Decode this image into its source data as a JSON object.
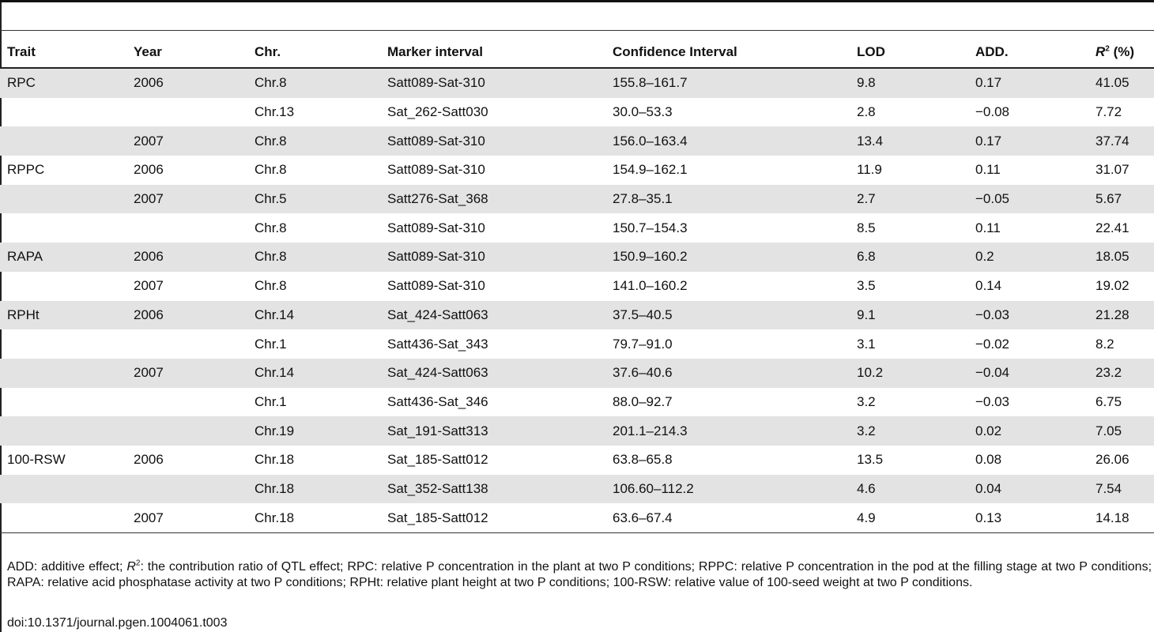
{
  "table": {
    "headers": {
      "trait": "Trait",
      "year": "Year",
      "chr": "Chr.",
      "marker": "Marker interval",
      "ci": "Confidence Interval",
      "lod": "LOD",
      "add": "ADD.",
      "r2_symbol": "R",
      "r2_sup": "2",
      "r2_unit": " (%)"
    },
    "rows": [
      {
        "trait": "RPC",
        "year": "2006",
        "chr": "Chr.8",
        "marker": "Satt089-Sat-310",
        "ci": "155.8–161.7",
        "lod": "9.8",
        "add": "0.17",
        "r2": "41.05",
        "shaded": true
      },
      {
        "trait": "",
        "year": "",
        "chr": "Chr.13",
        "marker": "Sat_262-Satt030",
        "ci": "30.0–53.3",
        "lod": "2.8",
        "add": "−0.08",
        "r2": "7.72",
        "shaded": false
      },
      {
        "trait": "",
        "year": "2007",
        "chr": "Chr.8",
        "marker": "Satt089-Sat-310",
        "ci": "156.0–163.4",
        "lod": "13.4",
        "add": "0.17",
        "r2": "37.74",
        "shaded": true
      },
      {
        "trait": "RPPC",
        "year": "2006",
        "chr": "Chr.8",
        "marker": "Satt089-Sat-310",
        "ci": "154.9–162.1",
        "lod": "11.9",
        "add": "0.11",
        "r2": "31.07",
        "shaded": false
      },
      {
        "trait": "",
        "year": "2007",
        "chr": "Chr.5",
        "marker": "Satt276-Sat_368",
        "ci": "27.8–35.1",
        "lod": "2.7",
        "add": "−0.05",
        "r2": "5.67",
        "shaded": true
      },
      {
        "trait": "",
        "year": "",
        "chr": "Chr.8",
        "marker": "Satt089-Sat-310",
        "ci": "150.7–154.3",
        "lod": "8.5",
        "add": "0.11",
        "r2": "22.41",
        "shaded": false
      },
      {
        "trait": "RAPA",
        "year": "2006",
        "chr": "Chr.8",
        "marker": "Satt089-Sat-310",
        "ci": "150.9–160.2",
        "lod": "6.8",
        "add": "0.2",
        "r2": "18.05",
        "shaded": true
      },
      {
        "trait": "",
        "year": "2007",
        "chr": "Chr.8",
        "marker": "Satt089-Sat-310",
        "ci": "141.0–160.2",
        "lod": "3.5",
        "add": "0.14",
        "r2": "19.02",
        "shaded": false
      },
      {
        "trait": "RPHt",
        "year": "2006",
        "chr": "Chr.14",
        "marker": "Sat_424-Satt063",
        "ci": "37.5–40.5",
        "lod": "9.1",
        "add": "−0.03",
        "r2": "21.28",
        "shaded": true
      },
      {
        "trait": "",
        "year": "",
        "chr": "Chr.1",
        "marker": "Satt436-Sat_343",
        "ci": "79.7–91.0",
        "lod": "3.1",
        "add": "−0.02",
        "r2": "8.2",
        "shaded": false
      },
      {
        "trait": "",
        "year": "2007",
        "chr": "Chr.14",
        "marker": "Sat_424-Satt063",
        "ci": "37.6–40.6",
        "lod": "10.2",
        "add": "−0.04",
        "r2": "23.2",
        "shaded": true
      },
      {
        "trait": "",
        "year": "",
        "chr": "Chr.1",
        "marker": "Satt436-Sat_346",
        "ci": "88.0–92.7",
        "lod": "3.2",
        "add": "−0.03",
        "r2": "6.75",
        "shaded": false
      },
      {
        "trait": "",
        "year": "",
        "chr": "Chr.19",
        "marker": "Sat_191-Satt313",
        "ci": "201.1–214.3",
        "lod": "3.2",
        "add": "0.02",
        "r2": "7.05",
        "shaded": true
      },
      {
        "trait": "100-RSW",
        "year": "2006",
        "chr": "Chr.18",
        "marker": "Sat_185-Satt012",
        "ci": "63.8–65.8",
        "lod": "13.5",
        "add": "0.08",
        "r2": "26.06",
        "shaded": false
      },
      {
        "trait": "",
        "year": "",
        "chr": "Chr.18",
        "marker": "Sat_352-Satt138",
        "ci": "106.60–112.2",
        "lod": "4.6",
        "add": "0.04",
        "r2": "7.54",
        "shaded": true
      },
      {
        "trait": "",
        "year": "2007",
        "chr": "Chr.18",
        "marker": "Sat_185-Satt012",
        "ci": "63.6–67.4",
        "lod": "4.9",
        "add": "0.13",
        "r2": "14.18",
        "shaded": false
      }
    ]
  },
  "footnote": {
    "part1": "ADD: additive effect; ",
    "r_symbol": "R",
    "r_sup": "2",
    "part2": ": the contribution ratio of QTL effect; RPC: relative P concentration in the plant at two P conditions; RPPC: relative P concentration in the pod at the filling stage at two P conditions; RAPA: relative acid phosphatase activity at two P conditions; RPHt: relative plant height at two P conditions; 100-RSW: relative value of 100-seed weight at two P conditions.",
    "doi": "doi:10.1371/journal.pgen.1004061.t003"
  }
}
